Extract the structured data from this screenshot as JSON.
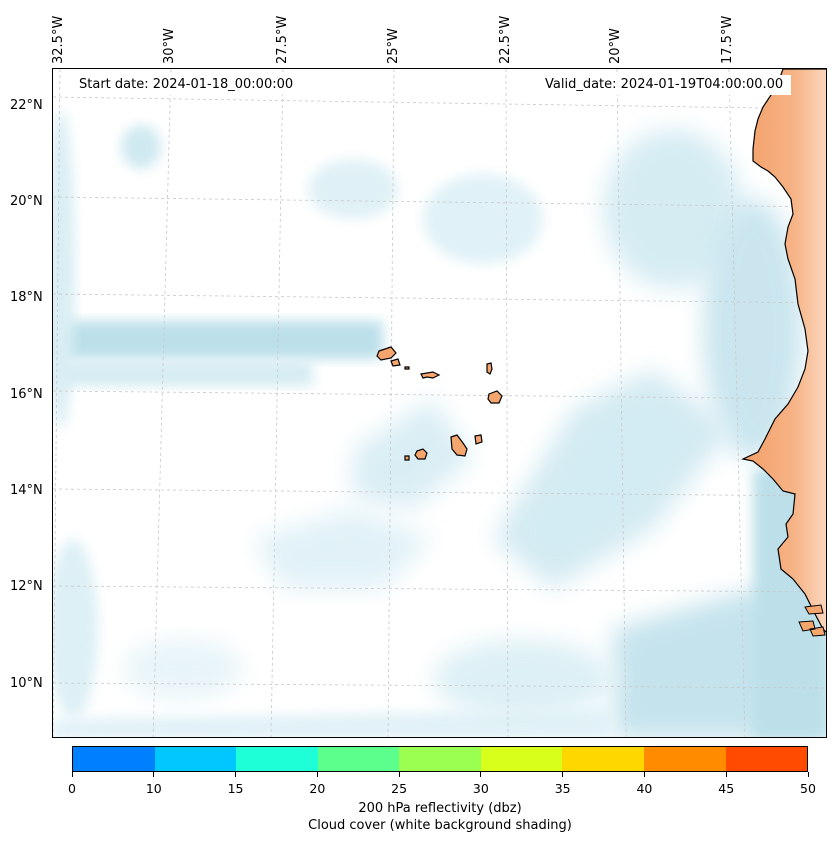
{
  "map": {
    "start_date": "Start date: 2024-01-18_00:00:00",
    "valid_date": "Valid_date: 2024-01-19T04:00:00.00",
    "lon_labels": [
      "32.5°W",
      "30°W",
      "27.5°W",
      "25°W",
      "22.5°W",
      "20°W",
      "17.5°W"
    ],
    "lat_labels": [
      "22°N",
      "20°N",
      "18°N",
      "16°N",
      "14°N",
      "12°N",
      "10°N"
    ]
  },
  "colorbar": {
    "ticks": [
      "0",
      "10",
      "15",
      "20",
      "25",
      "30",
      "35",
      "40",
      "45",
      "50"
    ],
    "colors": [
      "#0080ff",
      "#00c8ff",
      "#1effd8",
      "#5cff8c",
      "#9aff50",
      "#d8ff1c",
      "#ffd700",
      "#ff8c00",
      "#ff4b00"
    ],
    "title": "200 hPa reflectivity (dbz)",
    "subtitle": "Cloud cover (white background shading)"
  },
  "colors": {
    "cloud": "#a6d5e3",
    "land": "#f5a56e",
    "coast": "#000000",
    "grid": "#c8c8c8"
  }
}
